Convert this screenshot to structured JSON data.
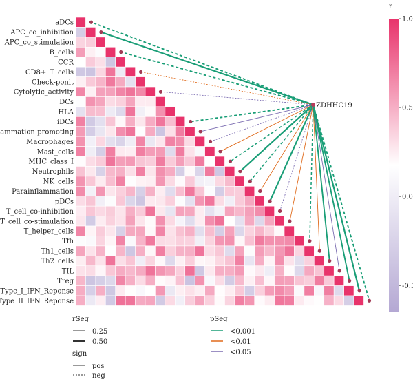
{
  "chart_data": {
    "type": "heatmap",
    "variables": [
      "aDCs",
      "APC_co_inhibition",
      "APC_co_stimulation",
      "B_cells",
      "CCR",
      "CD8+_T_cells",
      "Check-ponit",
      "Cytolytic_activity",
      "DCs",
      "HLA",
      "iDCs",
      "Inflammation-promoting",
      "Macrophages",
      "Mast_cells",
      "MHC_class_I",
      "Neutrophils",
      "NK_cells",
      "Parainflammation",
      "pDCs",
      "T_cell_co-inhibition",
      "T_cell_co-stimulation",
      "T_helper_cells",
      "Tfh",
      "Th1_cells",
      "Th2_cells",
      "TIL",
      "Treg",
      "Type_I_IFN_Reponse",
      "Type_II_IFN_Reponse"
    ],
    "gene": "ZDHHC19",
    "colorbar": {
      "title": "r",
      "ticks": [
        1.0,
        0.5,
        0.0,
        -0.5
      ],
      "tick_labels": [
        "1.0",
        "0.5",
        "0.0",
        "-0.5"
      ],
      "range": [
        -0.65,
        1.0
      ],
      "colors": {
        "high": "#e8336b",
        "mid": "#ffffff",
        "low": "#b4a8d3"
      }
    },
    "seed": 29,
    "links": [
      {
        "target": "aDCs",
        "sign": "neg",
        "p": "<0.001",
        "r": 0.4
      },
      {
        "target": "APC_co_inhibition",
        "sign": "pos",
        "p": "<0.001",
        "r": 0.5
      },
      {
        "target": "B_cells",
        "sign": "neg",
        "p": "<0.001",
        "r": 0.4
      },
      {
        "target": "CD8+_T_cells",
        "sign": "neg",
        "p": "<0.01",
        "r": 0.25
      },
      {
        "target": "Cytolytic_activity",
        "sign": "neg",
        "p": "<0.05",
        "r": 0.25
      },
      {
        "target": "iDCs",
        "sign": "neg",
        "p": "<0.001",
        "r": 0.4
      },
      {
        "target": "Inflammation-promoting",
        "sign": "pos",
        "p": "<0.05",
        "r": 0.25
      },
      {
        "target": "Macrophages",
        "sign": "neg",
        "p": "<0.05",
        "r": 0.25
      },
      {
        "target": "Mast_cells",
        "sign": "pos",
        "p": "<0.01",
        "r": 0.25
      },
      {
        "target": "MHC_class_I",
        "sign": "neg",
        "p": "<0.001",
        "r": 0.3
      },
      {
        "target": "Neutrophils",
        "sign": "pos",
        "p": "<0.001",
        "r": 0.5
      },
      {
        "target": "NK_cells",
        "sign": "neg",
        "p": "<0.001",
        "r": 0.3
      },
      {
        "target": "Parainflammation",
        "sign": "pos",
        "p": "<0.01",
        "r": 0.25
      },
      {
        "target": "pDCs",
        "sign": "pos",
        "p": "<0.001",
        "r": 0.5
      },
      {
        "target": "T_cell_co-inhibition",
        "sign": "neg",
        "p": "<0.05",
        "r": 0.25
      },
      {
        "target": "T_cell_co-stimulation",
        "sign": "pos",
        "p": "<0.01",
        "r": 0.25
      },
      {
        "target": "Tfh",
        "sign": "neg",
        "p": "<0.001",
        "r": 0.3
      },
      {
        "target": "Th1_cells",
        "sign": "pos",
        "p": "<0.01",
        "r": 0.25
      },
      {
        "target": "Th2_cells",
        "sign": "pos",
        "p": "<0.001",
        "r": 0.4
      },
      {
        "target": "TIL",
        "sign": "pos",
        "p": "<0.05",
        "r": 0.25
      },
      {
        "target": "Treg",
        "sign": "pos",
        "p": "<0.001",
        "r": 0.4
      },
      {
        "target": "Type_I_IFN_Reponse",
        "sign": "pos",
        "p": "<0.001",
        "r": 0.5
      },
      {
        "target": "Type_II_IFN_Reponse",
        "sign": "neg",
        "p": "<0.001",
        "r": 0.4
      }
    ],
    "legend": {
      "rseg": {
        "title": "rSeg",
        "items": [
          {
            "label": "0.25",
            "width": 0.25
          },
          {
            "label": "0.50",
            "width": 0.5
          }
        ]
      },
      "sign": {
        "title": "sign",
        "items": [
          {
            "label": "pos",
            "dash": "solid"
          },
          {
            "label": "neg",
            "dash": "dashed"
          }
        ]
      },
      "pseg": {
        "title": "pSeg",
        "items": [
          {
            "label": "<0.001",
            "color": "#1a9e77"
          },
          {
            "label": "<0.01",
            "color": "#e06a1b"
          },
          {
            "label": "<0.05",
            "color": "#7b6cb1"
          }
        ]
      }
    }
  }
}
